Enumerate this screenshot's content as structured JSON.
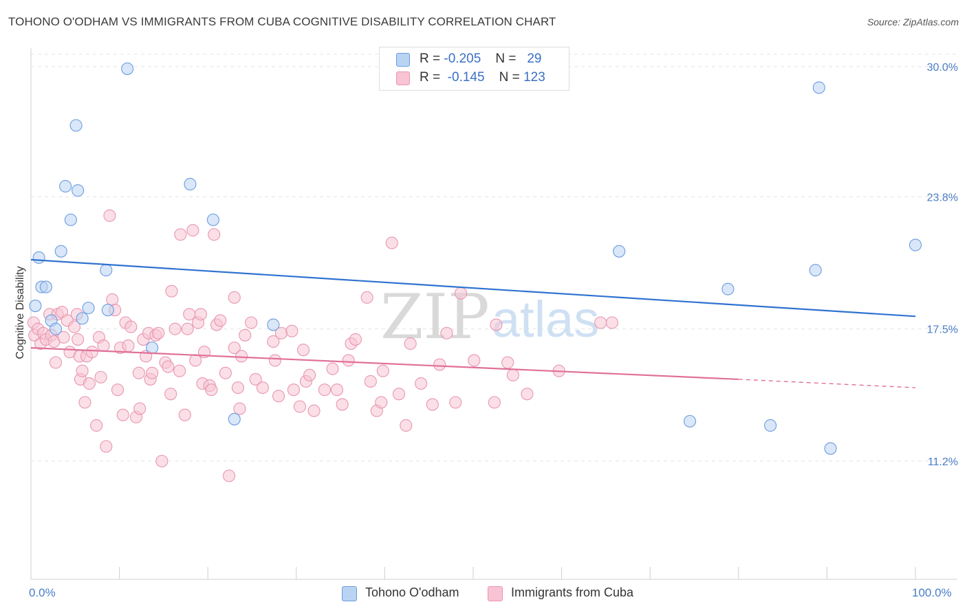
{
  "title": "TOHONO O'ODHAM VS IMMIGRANTS FROM CUBA COGNITIVE DISABILITY CORRELATION CHART",
  "source": "Source: ZipAtlas.com",
  "watermark": {
    "zip": "ZIP",
    "atlas": "atlas"
  },
  "legend_top": {
    "r_label": "R =",
    "n_label": "N =",
    "rows": [
      {
        "r": "-0.205",
        "n": "29"
      },
      {
        "r": "-0.145",
        "n": "123"
      }
    ]
  },
  "colors": {
    "blue_fill": "#b9d3f3",
    "blue_stroke": "#6b9be0",
    "blue_line": "#2f72d0",
    "pink_fill": "#f8c4d4",
    "pink_stroke": "#e895b0",
    "pink_line": "#e07098",
    "tick_text": "#4a7cc7",
    "grid": "#e3e3e3"
  },
  "chart_data": {
    "type": "scatter",
    "title": "TOHONO O'ODHAM VS IMMIGRANTS FROM CUBA COGNITIVE DISABILITY CORRELATION CHART",
    "xlabel": "",
    "ylabel": "Cognitive Disability",
    "xlim": [
      0,
      100
    ],
    "ylim": [
      5.0,
      31.5
    ],
    "x_tick_labels": [
      "0.0%",
      "100.0%"
    ],
    "y_ticks": [
      11.2,
      17.5,
      23.8,
      30.0
    ],
    "y_tick_labels": [
      "11.2%",
      "17.5%",
      "23.8%",
      "30.0%"
    ],
    "grid": true,
    "series": [
      {
        "name": "Tohono O'odham",
        "r": -0.205,
        "n": 29,
        "trend": {
          "x": [
            0,
            100
          ],
          "y": [
            20.8,
            18.1
          ]
        },
        "points": [
          [
            0.5,
            18.6
          ],
          [
            0.9,
            20.9
          ],
          [
            1.2,
            19.5
          ],
          [
            1.7,
            19.5
          ],
          [
            2.3,
            17.9
          ],
          [
            2.8,
            17.5
          ],
          [
            3.4,
            21.2
          ],
          [
            3.9,
            24.3
          ],
          [
            4.5,
            22.7
          ],
          [
            5.1,
            27.2
          ],
          [
            5.3,
            24.1
          ],
          [
            5.8,
            18.0
          ],
          [
            6.5,
            18.5
          ],
          [
            8.5,
            20.3
          ],
          [
            8.7,
            18.4
          ],
          [
            10.9,
            29.9
          ],
          [
            13.7,
            16.6
          ],
          [
            18.0,
            24.4
          ],
          [
            20.6,
            22.7
          ],
          [
            23.0,
            13.2
          ],
          [
            27.4,
            17.7
          ],
          [
            66.5,
            21.2
          ],
          [
            74.5,
            13.1
          ],
          [
            78.8,
            19.4
          ],
          [
            83.6,
            12.9
          ],
          [
            88.7,
            20.3
          ],
          [
            89.1,
            29.0
          ],
          [
            90.4,
            11.8
          ],
          [
            100.0,
            21.5
          ]
        ]
      },
      {
        "name": "Immigrants from Cuba",
        "r": -0.145,
        "n": 123,
        "trend": {
          "x": [
            0,
            80
          ],
          "y": [
            16.6,
            15.1
          ]
        },
        "trend_dashed": {
          "x": [
            80,
            100
          ],
          "y": [
            15.1,
            14.7
          ]
        },
        "points": [
          [
            0.3,
            17.8
          ],
          [
            0.4,
            17.2
          ],
          [
            0.8,
            17.5
          ],
          [
            1.1,
            16.8
          ],
          [
            1.4,
            17.3
          ],
          [
            1.7,
            17.0
          ],
          [
            2.1,
            18.2
          ],
          [
            2.3,
            17.2
          ],
          [
            2.6,
            16.9
          ],
          [
            3.0,
            18.2
          ],
          [
            2.8,
            15.9
          ],
          [
            3.5,
            18.3
          ],
          [
            3.7,
            17.1
          ],
          [
            4.1,
            17.9
          ],
          [
            4.4,
            16.4
          ],
          [
            4.9,
            17.6
          ],
          [
            5.2,
            18.2
          ],
          [
            5.5,
            16.2
          ],
          [
            5.3,
            17.0
          ],
          [
            5.6,
            15.1
          ],
          [
            5.8,
            15.5
          ],
          [
            6.1,
            14.0
          ],
          [
            6.3,
            16.2
          ],
          [
            6.6,
            14.9
          ],
          [
            6.9,
            16.4
          ],
          [
            7.4,
            12.9
          ],
          [
            7.7,
            17.1
          ],
          [
            7.9,
            15.2
          ],
          [
            8.2,
            16.7
          ],
          [
            8.5,
            11.9
          ],
          [
            8.9,
            22.9
          ],
          [
            9.2,
            18.9
          ],
          [
            9.5,
            18.4
          ],
          [
            9.8,
            14.6
          ],
          [
            10.1,
            16.6
          ],
          [
            10.4,
            13.4
          ],
          [
            10.7,
            17.8
          ],
          [
            11.0,
            16.7
          ],
          [
            11.3,
            17.6
          ],
          [
            11.9,
            13.3
          ],
          [
            12.2,
            15.4
          ],
          [
            12.3,
            13.7
          ],
          [
            12.7,
            17.0
          ],
          [
            13.0,
            16.2
          ],
          [
            13.3,
            17.3
          ],
          [
            13.5,
            15.1
          ],
          [
            13.7,
            15.4
          ],
          [
            14.1,
            17.2
          ],
          [
            14.4,
            17.3
          ],
          [
            14.8,
            11.2
          ],
          [
            15.2,
            15.9
          ],
          [
            15.5,
            15.7
          ],
          [
            15.8,
            14.4
          ],
          [
            15.9,
            19.3
          ],
          [
            16.3,
            17.5
          ],
          [
            16.8,
            15.5
          ],
          [
            16.9,
            22.0
          ],
          [
            17.4,
            13.4
          ],
          [
            17.7,
            17.5
          ],
          [
            17.9,
            18.2
          ],
          [
            18.3,
            22.2
          ],
          [
            18.6,
            16.0
          ],
          [
            18.9,
            17.8
          ],
          [
            19.2,
            18.2
          ],
          [
            19.4,
            14.9
          ],
          [
            19.6,
            16.4
          ],
          [
            20.2,
            14.8
          ],
          [
            20.4,
            14.6
          ],
          [
            20.7,
            22.0
          ],
          [
            21.0,
            17.7
          ],
          [
            21.4,
            17.9
          ],
          [
            22.0,
            15.4
          ],
          [
            22.4,
            10.5
          ],
          [
            23.0,
            19.0
          ],
          [
            23.0,
            16.6
          ],
          [
            23.4,
            14.7
          ],
          [
            23.6,
            13.7
          ],
          [
            23.8,
            16.2
          ],
          [
            24.2,
            17.2
          ],
          [
            24.9,
            17.8
          ],
          [
            25.4,
            15.1
          ],
          [
            26.2,
            14.7
          ],
          [
            27.4,
            16.9
          ],
          [
            27.6,
            16.0
          ],
          [
            28.0,
            14.3
          ],
          [
            28.3,
            17.3
          ],
          [
            29.5,
            17.4
          ],
          [
            29.7,
            14.6
          ],
          [
            30.4,
            13.8
          ],
          [
            30.8,
            16.5
          ],
          [
            31.1,
            15.0
          ],
          [
            31.5,
            15.3
          ],
          [
            32.0,
            13.6
          ],
          [
            33.2,
            14.6
          ],
          [
            34.1,
            15.6
          ],
          [
            34.6,
            14.6
          ],
          [
            35.2,
            13.9
          ],
          [
            35.9,
            16.0
          ],
          [
            36.2,
            16.8
          ],
          [
            36.7,
            17.0
          ],
          [
            38.0,
            19.0
          ],
          [
            38.4,
            15.0
          ],
          [
            39.1,
            13.6
          ],
          [
            39.6,
            14.0
          ],
          [
            39.8,
            15.5
          ],
          [
            40.8,
            21.6
          ],
          [
            41.6,
            14.4
          ],
          [
            42.4,
            12.9
          ],
          [
            42.9,
            16.8
          ],
          [
            44.1,
            14.9
          ],
          [
            45.4,
            13.9
          ],
          [
            46.2,
            15.8
          ],
          [
            47.0,
            17.3
          ],
          [
            48.0,
            14.0
          ],
          [
            48.6,
            19.2
          ],
          [
            50.1,
            16.0
          ],
          [
            52.4,
            14.0
          ],
          [
            52.6,
            17.7
          ],
          [
            53.9,
            15.9
          ],
          [
            54.5,
            15.3
          ],
          [
            56.1,
            14.4
          ],
          [
            59.7,
            15.5
          ],
          [
            64.4,
            17.8
          ],
          [
            65.7,
            17.8
          ]
        ]
      }
    ],
    "watermark": "ZIPatlas"
  }
}
